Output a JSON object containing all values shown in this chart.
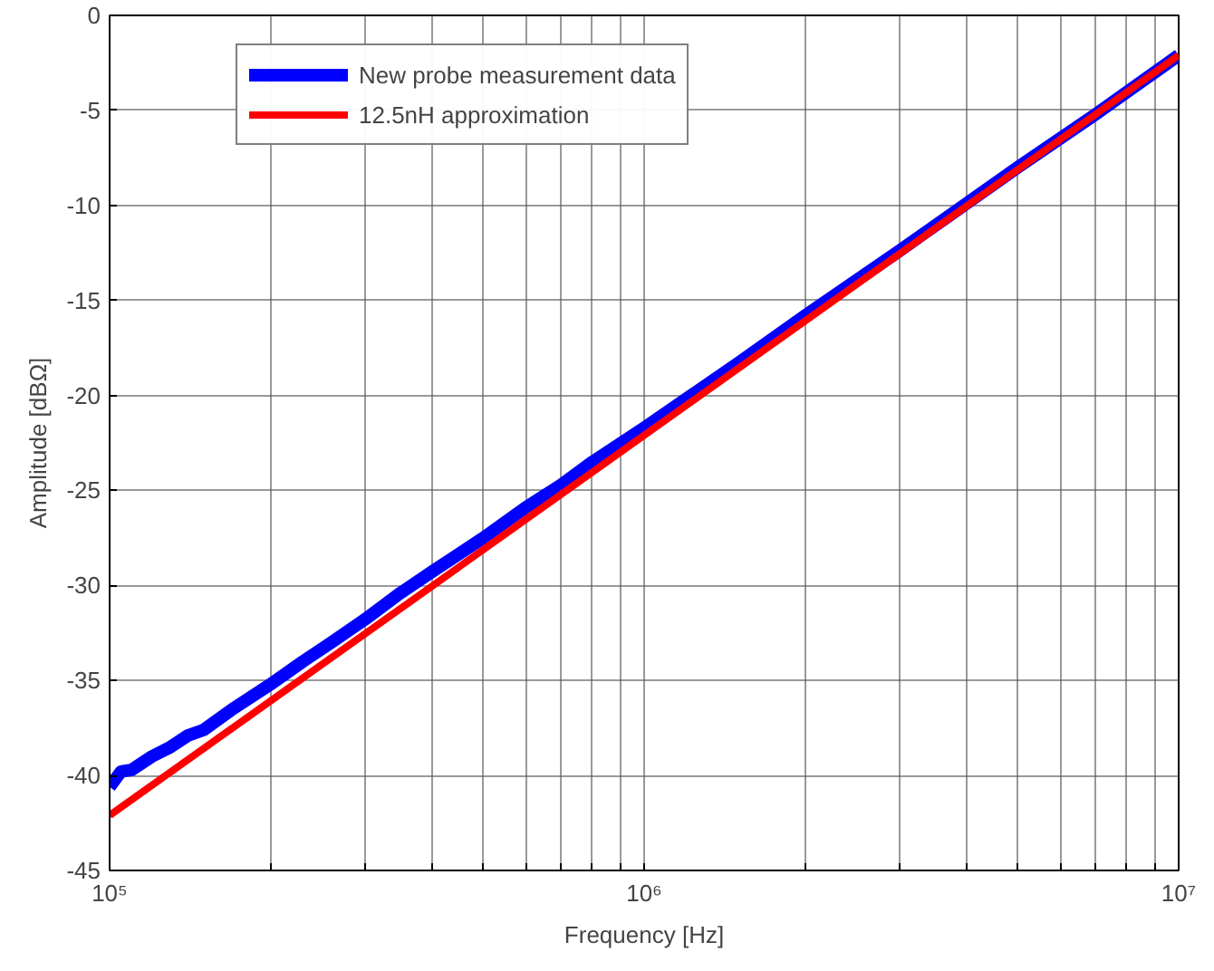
{
  "chart_data": {
    "type": "line",
    "xlabel": "Frequency [Hz]",
    "ylabel": "Amplitude [dBΩ]",
    "xlim": [
      100000,
      10000000
    ],
    "ylim": [
      -45,
      0
    ],
    "xticks": [
      {
        "value": 100000,
        "label": "10⁵"
      },
      {
        "value": 200000,
        "label": null
      },
      {
        "value": 300000,
        "label": null
      },
      {
        "value": 400000,
        "label": null
      },
      {
        "value": 500000,
        "label": null
      },
      {
        "value": 600000,
        "label": null
      },
      {
        "value": 700000,
        "label": null
      },
      {
        "value": 800000,
        "label": null
      },
      {
        "value": 900000,
        "label": null
      },
      {
        "value": 1000000,
        "label": "10⁶"
      },
      {
        "value": 2000000,
        "label": null
      },
      {
        "value": 3000000,
        "label": null
      },
      {
        "value": 4000000,
        "label": null
      },
      {
        "value": 5000000,
        "label": null
      },
      {
        "value": 6000000,
        "label": null
      },
      {
        "value": 7000000,
        "label": null
      },
      {
        "value": 8000000,
        "label": null
      },
      {
        "value": 9000000,
        "label": null
      },
      {
        "value": 10000000,
        "label": "10⁷"
      }
    ],
    "yticks": [
      -45,
      -40,
      -35,
      -30,
      -25,
      -20,
      -15,
      -10,
      -5,
      0
    ],
    "log": "x",
    "grid": true,
    "legend": "top left",
    "line_style": "solid",
    "series": [
      {
        "name": "New probe measurement data",
        "color": "#0000ff",
        "x": [
          100000,
          105000,
          110000,
          120000,
          130000,
          140000,
          150000,
          170000,
          200000,
          230000,
          260000,
          300000,
          350000,
          400000,
          500000,
          600000,
          700000,
          800000,
          1000000,
          1500000,
          2000000,
          3000000,
          5000000,
          7000000,
          10000000
        ],
        "values": [
          -40.6,
          -39.8,
          -39.7,
          -39.0,
          -38.5,
          -37.9,
          -37.6,
          -36.5,
          -35.2,
          -34.0,
          -33.0,
          -31.8,
          -30.4,
          -29.3,
          -27.5,
          -25.9,
          -24.7,
          -23.5,
          -21.7,
          -18.3,
          -15.8,
          -12.4,
          -8.0,
          -5.2,
          -2.1
        ]
      },
      {
        "name": "12.5nH approximation",
        "color": "#ff0000",
        "x": [
          100000,
          10000000
        ],
        "values": [
          -42.1,
          -2.1
        ]
      }
    ]
  }
}
